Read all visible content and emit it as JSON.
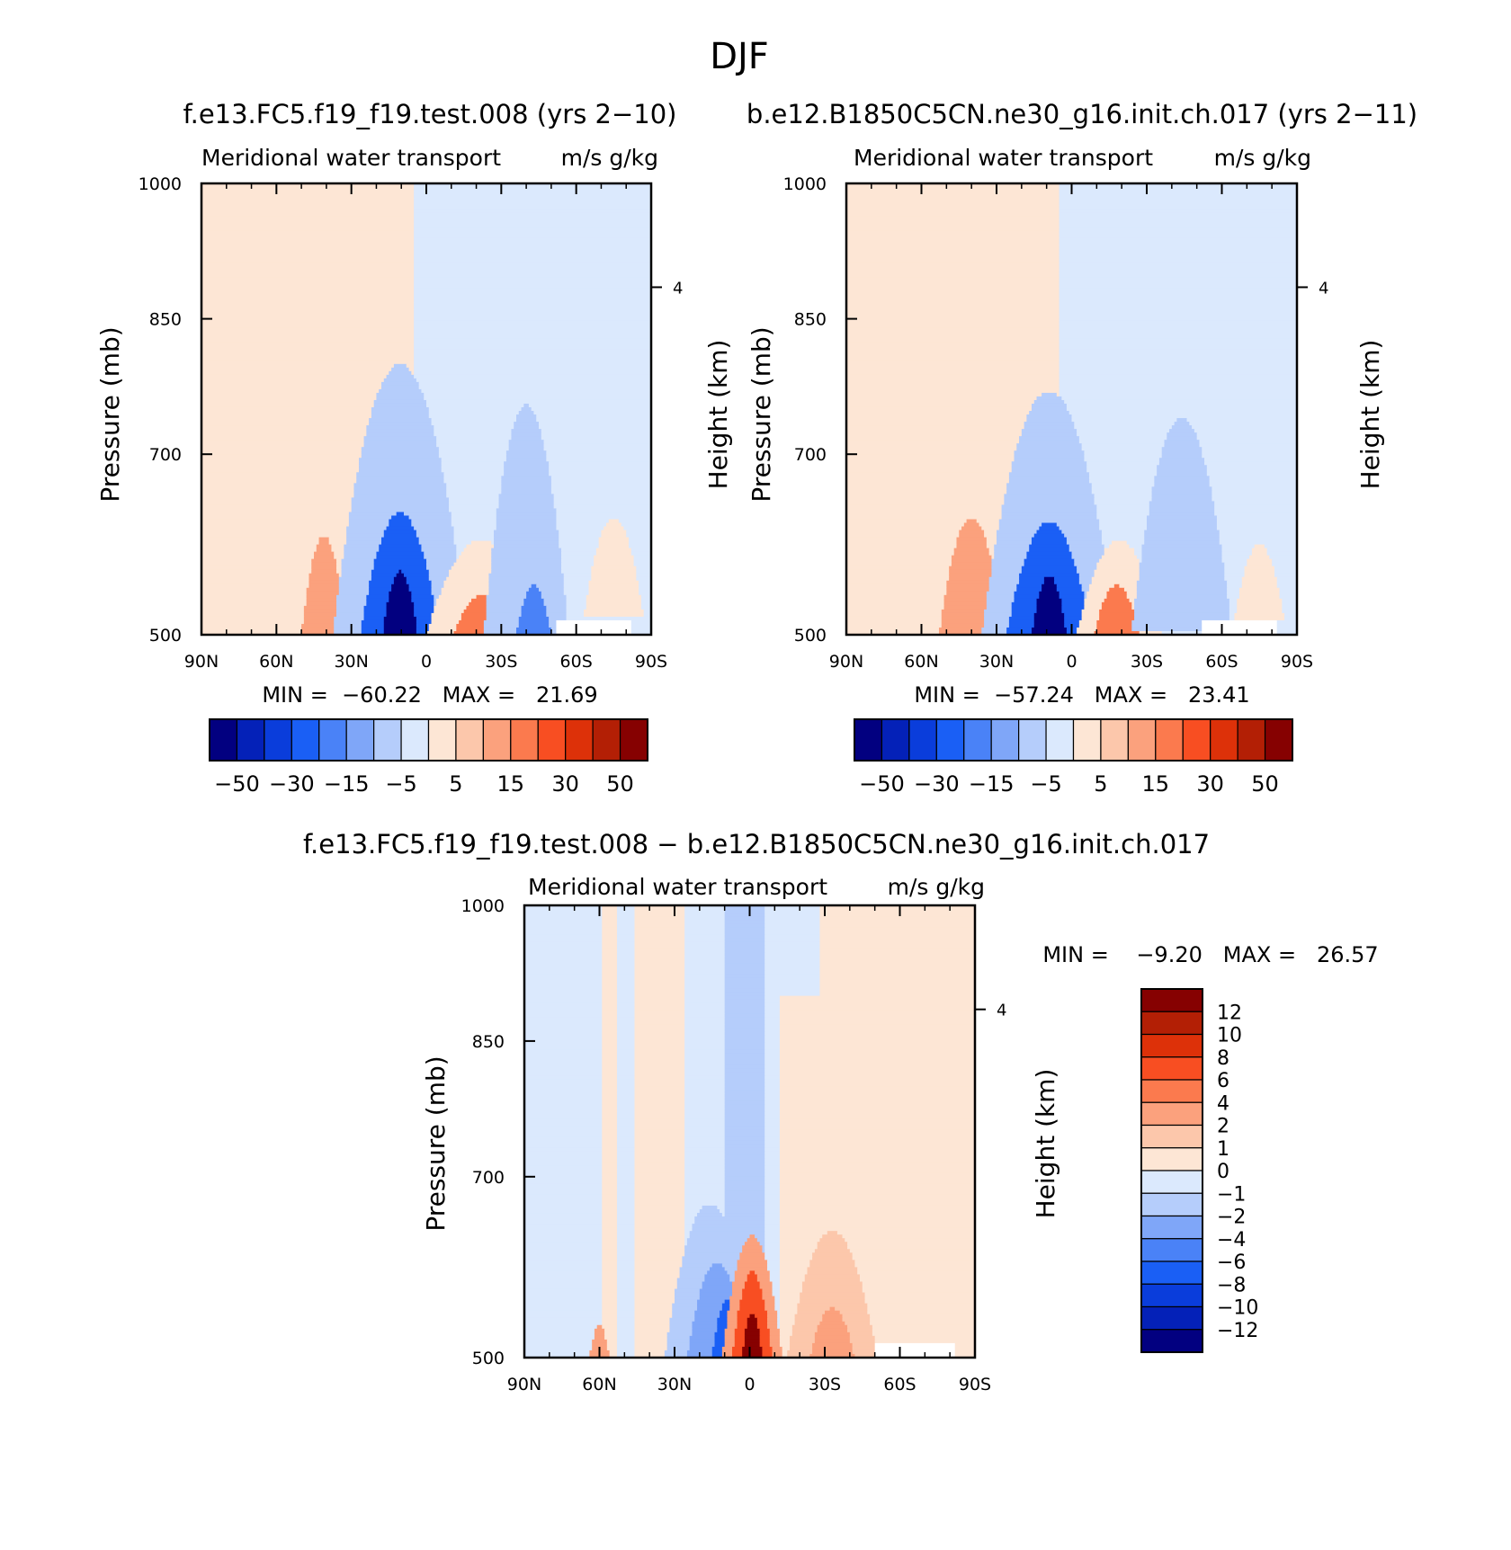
{
  "figure_title": "DJF",
  "panels": [
    {
      "case_title": "f.e13.FC5.f19_f19.test.008 (yrs 2−10)",
      "left_string": "Meridional water transport",
      "right_string": "m/s g/kg",
      "min_max": "MIN =  −60.22   MAX =   21.69",
      "ylabel": "Pressure (mb)",
      "ylabel_right": "Height (km)"
    },
    {
      "case_title": "b.e12.B1850C5CN.ne30_g16.init.ch.017 (yrs 2−11)",
      "left_string": "Meridional water transport",
      "right_string": "m/s g/kg",
      "min_max": "MIN =  −57.24   MAX =   23.41",
      "ylabel": "Pressure (mb)",
      "ylabel_right": "Height (km)"
    },
    {
      "case_title": "f.e13.FC5.f19_f19.test.008 − b.e12.B1850C5CN.ne30_g16.init.ch.017",
      "left_string": "Meridional water transport",
      "right_string": "m/s g/kg",
      "min_max": "MIN =    −9.20   MAX =   26.57",
      "ylabel": "Pressure (mb)",
      "ylabel_right": "Height (km)"
    }
  ],
  "axes": {
    "x_ticks": [
      "90N",
      "60N",
      "30N",
      "0",
      "30S",
      "60S",
      "90S"
    ],
    "y_ticks": [
      "500",
      "700",
      "850",
      "1000"
    ],
    "height_ticks": [
      "4"
    ]
  },
  "colorbars": {
    "main_labels": [
      "−50",
      "−30",
      "−15",
      "−5",
      "5",
      "15",
      "30",
      "50"
    ],
    "main_colors": [
      "#020080",
      "#0421b8",
      "#0a3ddb",
      "#1a5ff5",
      "#4a82f7",
      "#7fa6f8",
      "#b5cdfb",
      "#dbe9fd",
      "#fde6d5",
      "#fcc7ab",
      "#fba17d",
      "#fb7a4e",
      "#f84e22",
      "#dd3109",
      "#b31f05",
      "#860101"
    ],
    "diff_labels": [
      "12",
      "10",
      "8",
      "6",
      "4",
      "2",
      "1",
      "0",
      "−1",
      "−2",
      "−4",
      "−6",
      "−8",
      "−10",
      "−12"
    ],
    "diff_colors": [
      "#860101",
      "#b31f05",
      "#dd3109",
      "#f84e22",
      "#fb7a4e",
      "#fba17d",
      "#fcc7ab",
      "#fde6d5",
      "#dbe9fd",
      "#b5cdfb",
      "#7fa6f8",
      "#4a82f7",
      "#1a5ff5",
      "#0a3ddb",
      "#0421b8",
      "#020080"
    ]
  },
  "chart_data": [
    {
      "type": "heatmap",
      "title": "f.e13.FC5.f19_f19.test.008 (yrs 2−10)",
      "xlabel": "",
      "ylabel": "Pressure (mb)",
      "xlim": [
        90,
        -90
      ],
      "ylim": [
        1000,
        500
      ],
      "min": -60.22,
      "max": 21.69,
      "features": [
        {
          "lat": 49.5,
          "p_top": 755,
          "p_bottom": 1000,
          "width": 20,
          "value": 3,
          "shape": "lobe"
        },
        {
          "lat": 41,
          "p_top": 890,
          "p_bottom": 1000,
          "width": 9,
          "value": 12,
          "shape": "lobe"
        },
        {
          "lat": 10.5,
          "p_top": 700,
          "p_bottom": 1000,
          "width": 27,
          "value": -10,
          "shape": "lobe"
        },
        {
          "lat": 10.5,
          "p_top": 865,
          "p_bottom": 1000,
          "width": 16,
          "value": -30,
          "shape": "lobe"
        },
        {
          "lat": 10.5,
          "p_top": 930,
          "p_bottom": 1000,
          "width": 7,
          "value": -55,
          "shape": "lobe"
        },
        {
          "lat": -22,
          "p_top": 895,
          "p_bottom": 1000,
          "width": 22,
          "value": 4,
          "shape": "lobe"
        },
        {
          "lat": -23,
          "p_top": 955,
          "p_bottom": 1000,
          "width": 12,
          "value": 15,
          "shape": "lobe"
        },
        {
          "lat": -40,
          "p_top": 745,
          "p_bottom": 1000,
          "width": 17,
          "value": -10,
          "shape": "lobe"
        },
        {
          "lat": -43,
          "p_top": 945,
          "p_bottom": 1000,
          "width": 7,
          "value": -20,
          "shape": "lobe"
        },
        {
          "lat": -75,
          "p_top": 870,
          "p_bottom": 980,
          "width": 12,
          "value": 3,
          "shape": "lobe"
        }
      ],
      "background": [
        {
          "lat_from": 90,
          "lat_to": 5,
          "value": 3
        },
        {
          "lat_from": 5,
          "lat_to": -90,
          "value": -3
        }
      ],
      "missing": [
        {
          "lat_from": -52,
          "lat_to": -82,
          "p_top": 985,
          "p_bottom": 1000
        }
      ]
    },
    {
      "type": "heatmap",
      "title": "b.e12.B1850C5CN.ne30_g16.init.ch.017 (yrs 2−11)",
      "xlabel": "",
      "ylabel": "Pressure (mb)",
      "xlim": [
        90,
        -90
      ],
      "ylim": [
        1000,
        500
      ],
      "min": -57.24,
      "max": 23.41,
      "features": [
        {
          "lat": 47,
          "p_top": 725,
          "p_bottom": 1000,
          "width": 22,
          "value": 3,
          "shape": "lobe"
        },
        {
          "lat": 40,
          "p_top": 870,
          "p_bottom": 1000,
          "width": 13,
          "value": 12,
          "shape": "lobe"
        },
        {
          "lat": 9,
          "p_top": 730,
          "p_bottom": 1000,
          "width": 27,
          "value": -10,
          "shape": "lobe"
        },
        {
          "lat": 9,
          "p_top": 875,
          "p_bottom": 1000,
          "width": 17,
          "value": -30,
          "shape": "lobe"
        },
        {
          "lat": 9,
          "p_top": 935,
          "p_bottom": 1000,
          "width": 7,
          "value": -55,
          "shape": "lobe"
        },
        {
          "lat": -19,
          "p_top": 895,
          "p_bottom": 1000,
          "width": 17,
          "value": 4,
          "shape": "lobe"
        },
        {
          "lat": -18,
          "p_top": 945,
          "p_bottom": 1000,
          "width": 9,
          "value": 15,
          "shape": "lobe"
        },
        {
          "lat": -44,
          "p_top": 760,
          "p_bottom": 995,
          "width": 20,
          "value": -10,
          "shape": "lobe"
        },
        {
          "lat": -75,
          "p_top": 900,
          "p_bottom": 985,
          "width": 10,
          "value": 3,
          "shape": "lobe"
        }
      ],
      "background": [
        {
          "lat_from": 90,
          "lat_to": 5,
          "value": 3
        },
        {
          "lat_from": 5,
          "lat_to": -90,
          "value": -3
        }
      ],
      "missing": [
        {
          "lat_from": -52,
          "lat_to": -82,
          "p_top": 985,
          "p_bottom": 1000
        }
      ]
    },
    {
      "type": "heatmap",
      "title": "f.e13.FC5.f19_f19.test.008 − b.e12.B1850C5CN.ne30_g16.init.ch.017",
      "xlabel": "",
      "ylabel": "Pressure (mb)",
      "xlim": [
        90,
        -90
      ],
      "ylim": [
        1000,
        500
      ],
      "min": -9.2,
      "max": 26.57,
      "features": [
        {
          "lat": 56,
          "p_top": 500,
          "p_bottom": 1000,
          "width": 3,
          "value": 0.5,
          "shape": "column"
        },
        {
          "lat": 36,
          "p_top": 500,
          "p_bottom": 1000,
          "width": 10,
          "value": 0.5,
          "shape": "column"
        },
        {
          "lat": -40,
          "p_top": 500,
          "p_bottom": 930,
          "width": 12,
          "value": 0.5,
          "shape": "column"
        },
        {
          "lat": -70,
          "p_top": 500,
          "p_bottom": 1000,
          "width": 30,
          "value": 0.5,
          "shape": "column"
        },
        {
          "lat": -20,
          "p_top": 600,
          "p_bottom": 1000,
          "width": 8,
          "value": 0.5,
          "shape": "column"
        },
        {
          "lat": 2,
          "p_top": 500,
          "p_bottom": 920,
          "width": 8,
          "value": -1.5,
          "shape": "column"
        },
        {
          "lat": -33,
          "p_top": 860,
          "p_bottom": 1000,
          "width": 18,
          "value": 1.5,
          "shape": "lobe"
        },
        {
          "lat": -33,
          "p_top": 945,
          "p_bottom": 1000,
          "width": 9,
          "value": 3,
          "shape": "lobe"
        },
        {
          "lat": 16,
          "p_top": 830,
          "p_bottom": 1000,
          "width": 18,
          "value": -1.5,
          "shape": "lobe"
        },
        {
          "lat": 13,
          "p_top": 895,
          "p_bottom": 1000,
          "width": 12,
          "value": -3,
          "shape": "lobe"
        },
        {
          "lat": 9,
          "p_top": 935,
          "p_bottom": 1000,
          "width": 6,
          "value": -7,
          "shape": "lobe"
        },
        {
          "lat": -1,
          "p_top": 865,
          "p_bottom": 1000,
          "width": 12,
          "value": 3,
          "shape": "lobe"
        },
        {
          "lat": -1,
          "p_top": 905,
          "p_bottom": 1000,
          "width": 8,
          "value": 7,
          "shape": "lobe"
        },
        {
          "lat": -1,
          "p_top": 950,
          "p_bottom": 1000,
          "width": 4,
          "value": 13,
          "shape": "lobe"
        },
        {
          "lat": 60,
          "p_top": 965,
          "p_bottom": 1000,
          "width": 4,
          "value": 3,
          "shape": "lobe"
        }
      ],
      "background": [
        {
          "lat_from": 90,
          "lat_to": -90,
          "value": -0.5
        }
      ],
      "missing": [
        {
          "lat_from": -50,
          "lat_to": -82,
          "p_top": 985,
          "p_bottom": 1000
        }
      ]
    }
  ]
}
